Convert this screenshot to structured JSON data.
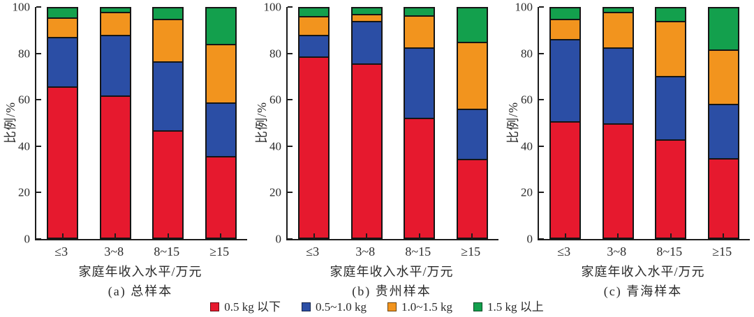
{
  "figure_background": "#ffffff",
  "axis_color": "#1c1c1c",
  "legend": {
    "items": [
      {
        "label": "0.5 kg 以下",
        "color": "#E6192E"
      },
      {
        "label": "0.5~1.0 kg",
        "color": "#2B4EA5"
      },
      {
        "label": "1.0~1.5 kg",
        "color": "#F2941E"
      },
      {
        "label": "1.5 kg 以上",
        "color": "#13A04D"
      }
    ]
  },
  "chart_data": [
    {
      "type": "bar",
      "stacked": true,
      "subtitle": "(a) 总样本",
      "xlabel": "家庭年收入水平/万元",
      "ylabel": "比例/%",
      "ylim": [
        0,
        100
      ],
      "yticks": [
        0,
        20,
        40,
        60,
        80,
        100
      ],
      "grid": false,
      "categories": [
        "≤3",
        "3~8",
        "8~15",
        "≥15"
      ],
      "series": [
        {
          "name": "0.5 kg 以下",
          "color": "#E6192E",
          "values": [
            65.5,
            61.5,
            46.5,
            35.5
          ]
        },
        {
          "name": "0.5~1.0 kg",
          "color": "#2B4EA5",
          "values": [
            21.5,
            26.5,
            30.0,
            23.0
          ]
        },
        {
          "name": "1.0~1.5 kg",
          "color": "#F2941E",
          "values": [
            8.5,
            10.0,
            18.5,
            25.5
          ]
        },
        {
          "name": "1.5 kg 以上",
          "color": "#13A04D",
          "values": [
            4.5,
            2.0,
            5.0,
            16.0
          ]
        }
      ]
    },
    {
      "type": "bar",
      "stacked": true,
      "subtitle": "(b) 贵州样本",
      "xlabel": "家庭年收入水平/万元",
      "ylabel": "比例/%",
      "ylim": [
        0,
        100
      ],
      "yticks": [
        0,
        20,
        40,
        60,
        80,
        100
      ],
      "grid": false,
      "categories": [
        "≤3",
        "3~8",
        "8~15",
        "≥15"
      ],
      "series": [
        {
          "name": "0.5 kg 以下",
          "color": "#E6192E",
          "values": [
            78.5,
            75.5,
            52.0,
            34.0
          ]
        },
        {
          "name": "0.5~1.0 kg",
          "color": "#2B4EA5",
          "values": [
            9.5,
            18.5,
            30.5,
            22.0
          ]
        },
        {
          "name": "1.0~1.5 kg",
          "color": "#F2941E",
          "values": [
            8.0,
            3.0,
            14.0,
            29.0
          ]
        },
        {
          "name": "1.5 kg 以上",
          "color": "#13A04D",
          "values": [
            4.0,
            3.0,
            3.5,
            15.0
          ]
        }
      ]
    },
    {
      "type": "bar",
      "stacked": true,
      "subtitle": "(c) 青海样本",
      "xlabel": "家庭年收入水平/万元",
      "ylabel": "比例/%",
      "ylim": [
        0,
        100
      ],
      "yticks": [
        0,
        20,
        40,
        60,
        80,
        100
      ],
      "grid": false,
      "categories": [
        "≤3",
        "3~8",
        "8~15",
        "≥15"
      ],
      "series": [
        {
          "name": "0.5 kg 以下",
          "color": "#E6192E",
          "values": [
            50.5,
            49.5,
            42.5,
            34.5
          ]
        },
        {
          "name": "0.5~1.0 kg",
          "color": "#2B4EA5",
          "values": [
            35.5,
            33.0,
            27.5,
            23.5
          ]
        },
        {
          "name": "1.0~1.5 kg",
          "color": "#F2941E",
          "values": [
            9.0,
            15.5,
            24.0,
            23.5
          ]
        },
        {
          "name": "1.5 kg 以上",
          "color": "#13A04D",
          "values": [
            5.0,
            2.0,
            6.0,
            18.5
          ]
        }
      ]
    }
  ]
}
